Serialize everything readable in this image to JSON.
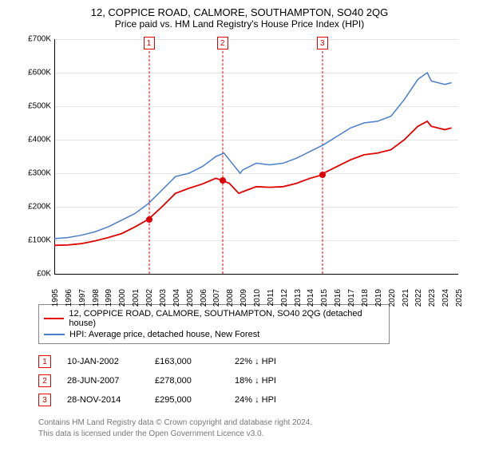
{
  "title": "12, COPPICE ROAD, CALMORE, SOUTHAMPTON, SO40 2QG",
  "subtitle": "Price paid vs. HM Land Registry's House Price Index (HPI)",
  "chart": {
    "type": "line",
    "x_years": [
      1995,
      1996,
      1997,
      1998,
      1999,
      2000,
      2001,
      2002,
      2003,
      2004,
      2005,
      2006,
      2007,
      2008,
      2009,
      2010,
      2011,
      2012,
      2013,
      2014,
      2015,
      2016,
      2017,
      2018,
      2019,
      2020,
      2021,
      2022,
      2023,
      2024,
      2025
    ],
    "xlim": [
      1995,
      2025
    ],
    "ylim": [
      0,
      700000
    ],
    "ytick_step": 100000,
    "ylabel_prefix": "£",
    "ylabel_suffix": "K",
    "background_color": "#ffffff",
    "grid_color": "#e5e5e5",
    "axis_color": "#000000",
    "series": [
      {
        "name": "12, COPPICE ROAD, CALMORE, SOUTHAMPTON, SO40 2QG (detached house)",
        "color": "#e00000",
        "width": 1.8,
        "data": [
          [
            1995,
            85000
          ],
          [
            1996,
            86000
          ],
          [
            1997,
            90000
          ],
          [
            1998,
            98000
          ],
          [
            1999,
            108000
          ],
          [
            2000,
            120000
          ],
          [
            2001,
            140000
          ],
          [
            2002,
            163000
          ],
          [
            2003,
            200000
          ],
          [
            2004,
            240000
          ],
          [
            2005,
            255000
          ],
          [
            2006,
            268000
          ],
          [
            2007,
            285000
          ],
          [
            2007.5,
            278000
          ],
          [
            2008,
            270000
          ],
          [
            2008.7,
            240000
          ],
          [
            2009,
            245000
          ],
          [
            2010,
            260000
          ],
          [
            2011,
            258000
          ],
          [
            2012,
            260000
          ],
          [
            2013,
            270000
          ],
          [
            2014,
            285000
          ],
          [
            2014.9,
            295000
          ],
          [
            2015,
            300000
          ],
          [
            2016,
            320000
          ],
          [
            2017,
            340000
          ],
          [
            2018,
            355000
          ],
          [
            2019,
            360000
          ],
          [
            2020,
            370000
          ],
          [
            2021,
            400000
          ],
          [
            2022,
            440000
          ],
          [
            2022.7,
            455000
          ],
          [
            2023,
            440000
          ],
          [
            2024,
            430000
          ],
          [
            2024.5,
            435000
          ]
        ]
      },
      {
        "name": "HPI: Average price, detached house, New Forest",
        "color": "#4a7ecb",
        "width": 1.5,
        "data": [
          [
            1995,
            105000
          ],
          [
            1996,
            108000
          ],
          [
            1997,
            115000
          ],
          [
            1998,
            125000
          ],
          [
            1999,
            140000
          ],
          [
            2000,
            160000
          ],
          [
            2001,
            180000
          ],
          [
            2002,
            210000
          ],
          [
            2003,
            250000
          ],
          [
            2004,
            290000
          ],
          [
            2005,
            300000
          ],
          [
            2006,
            320000
          ],
          [
            2007,
            350000
          ],
          [
            2007.6,
            360000
          ],
          [
            2008,
            340000
          ],
          [
            2008.8,
            300000
          ],
          [
            2009,
            310000
          ],
          [
            2010,
            330000
          ],
          [
            2011,
            325000
          ],
          [
            2012,
            330000
          ],
          [
            2013,
            345000
          ],
          [
            2014,
            365000
          ],
          [
            2015,
            385000
          ],
          [
            2016,
            410000
          ],
          [
            2017,
            435000
          ],
          [
            2018,
            450000
          ],
          [
            2019,
            455000
          ],
          [
            2020,
            470000
          ],
          [
            2021,
            520000
          ],
          [
            2022,
            580000
          ],
          [
            2022.7,
            600000
          ],
          [
            2023,
            575000
          ],
          [
            2024,
            565000
          ],
          [
            2024.5,
            570000
          ]
        ]
      }
    ],
    "sales": [
      {
        "n": "1",
        "year": 2002.03,
        "price": 163000,
        "color": "#e00000"
      },
      {
        "n": "2",
        "year": 2007.49,
        "price": 278000,
        "color": "#e00000"
      },
      {
        "n": "3",
        "year": 2014.91,
        "price": 295000,
        "color": "#e00000"
      }
    ]
  },
  "legend": {
    "items": [
      {
        "color": "#e00000",
        "label": "12, COPPICE ROAD, CALMORE, SOUTHAMPTON, SO40 2QG (detached house)"
      },
      {
        "color": "#4a7ecb",
        "label": "HPI: Average price, detached house, New Forest"
      }
    ]
  },
  "markers": [
    {
      "n": "1",
      "date": "10-JAN-2002",
      "price": "£163,000",
      "diff": "22% ↓ HPI"
    },
    {
      "n": "2",
      "date": "28-JUN-2007",
      "price": "£278,000",
      "diff": "18% ↓ HPI"
    },
    {
      "n": "3",
      "date": "28-NOV-2014",
      "price": "£295,000",
      "diff": "24% ↓ HPI"
    }
  ],
  "footnote": {
    "line1": "Contains HM Land Registry data © Crown copyright and database right 2024.",
    "line2": "This data is licensed under the Open Government Licence v3.0."
  }
}
